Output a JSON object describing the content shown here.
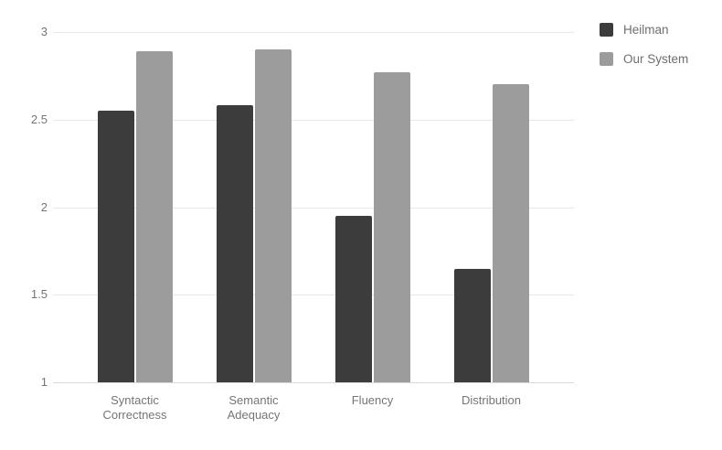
{
  "chart_data": {
    "type": "bar",
    "title": "",
    "categories": [
      "Syntactic Correctness",
      "Semantic Adequacy",
      "Fluency",
      "Distribution"
    ],
    "series": [
      {
        "name": "Heilman",
        "color": "#3c3c3c",
        "values": [
          2.55,
          2.58,
          1.95,
          1.65
        ]
      },
      {
        "name": "Our System",
        "color": "#9c9c9c",
        "values": [
          2.89,
          2.9,
          2.77,
          2.7
        ]
      }
    ],
    "xlabel": "",
    "ylabel": "",
    "ylim": [
      1,
      3
    ],
    "yticks": [
      1,
      1.5,
      2,
      2.5,
      3
    ],
    "ytick_labels": [
      "1",
      "1.5",
      "2",
      "2.5",
      "3"
    ],
    "grid": true,
    "legend_position": "right",
    "colors": {
      "background": "#ffffff",
      "gridline": "#e8e8e8",
      "baseline": "#dadada",
      "axis_text": "#757575",
      "legend_text": "#6e6e6e"
    }
  }
}
